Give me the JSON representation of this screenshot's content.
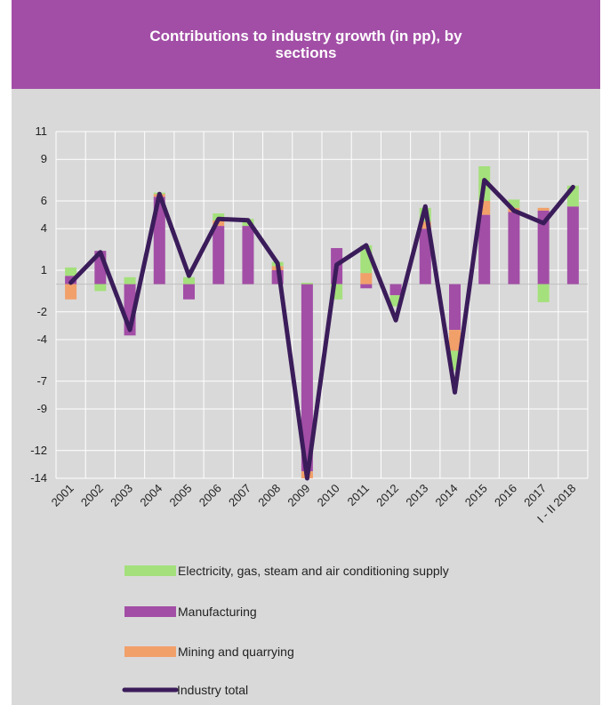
{
  "chart_data": {
    "type": "bar",
    "title": "Contributions to industry growth (in pp), by sections",
    "categories": [
      "2001",
      "2002",
      "2003",
      "2004",
      "2005",
      "2006",
      "2007",
      "2008",
      "2009",
      "2010",
      "2011",
      "2012",
      "2013",
      "2014",
      "2015",
      "2016",
      "2017",
      "I - II 2018"
    ],
    "ylim": [
      -14,
      11
    ],
    "yticks": [
      11,
      9,
      6,
      4,
      1,
      -2,
      -4,
      -7,
      -9,
      -12,
      -14
    ],
    "stacked": true,
    "grid": true,
    "legend_position": "bottom",
    "series": [
      {
        "name": "Electricity, gas, steam and air conditioning supply",
        "kind": "bar",
        "color": "#a4e07c",
        "values": [
          0.6,
          -0.5,
          0.5,
          0.1,
          0.5,
          0.5,
          0.5,
          0.3,
          0.1,
          -1.1,
          2.0,
          -0.8,
          1.0,
          -1.4,
          2.5,
          0.6,
          -1.3,
          1.5
        ]
      },
      {
        "name": "Manufacturing",
        "kind": "bar",
        "color": "#a24ea6",
        "values": [
          0.6,
          2.4,
          -3.7,
          6.3,
          -1.1,
          4.2,
          4.2,
          1.0,
          -13.5,
          2.6,
          -0.3,
          -0.8,
          4.0,
          -3.3,
          5.0,
          5.2,
          5.3,
          5.6
        ]
      },
      {
        "name": "Mining and quarrying",
        "kind": "bar",
        "color": "#f1a06a",
        "values": [
          -1.1,
          0.0,
          0.0,
          0.2,
          0.0,
          0.4,
          0.0,
          0.3,
          -0.5,
          0.0,
          0.8,
          0.0,
          0.5,
          -1.5,
          1.0,
          0.3,
          0.2,
          0.0
        ]
      },
      {
        "name": "Industry total",
        "kind": "line",
        "color": "#3b1c5a",
        "values": [
          0.1,
          2.3,
          -3.3,
          6.5,
          0.6,
          4.7,
          4.6,
          1.5,
          -14.0,
          1.4,
          2.8,
          -2.6,
          5.6,
          -7.8,
          7.5,
          5.3,
          4.4,
          7.0
        ]
      }
    ]
  }
}
